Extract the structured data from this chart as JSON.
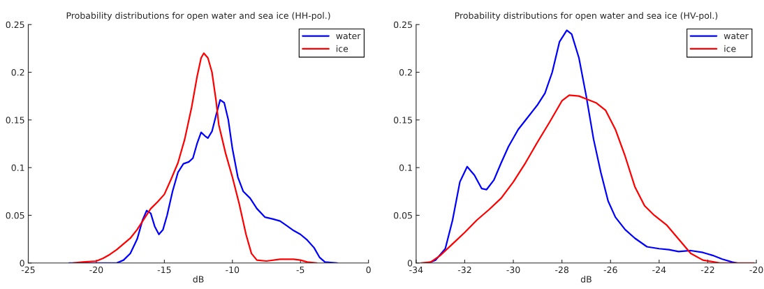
{
  "chart_data": [
    {
      "type": "line",
      "title": "Probability distributions for open water and sea ice (HH-pol.)",
      "xlabel": "dB",
      "xlim": [
        -25,
        0
      ],
      "xticks": [
        -25,
        -20,
        -15,
        -10,
        -5,
        0
      ],
      "ylim": [
        0,
        0.25
      ],
      "yticks": [
        0,
        0.05,
        0.1,
        0.15,
        0.2,
        0.25
      ],
      "grid": false,
      "legend": "top right",
      "series": [
        {
          "name": "water",
          "color": "#0000ff",
          "x": [
            -22,
            -18.5,
            -18,
            -17.5,
            -17,
            -16.6,
            -16.3,
            -16,
            -15.7,
            -15.4,
            -15.1,
            -14.8,
            -14.4,
            -14,
            -13.6,
            -13.2,
            -12.9,
            -12.6,
            -12.3,
            -12,
            -11.8,
            -11.5,
            -11.2,
            -10.9,
            -10.6,
            -10.3,
            -10,
            -9.6,
            -9.2,
            -8.7,
            -8.2,
            -7.6,
            -7,
            -6.5,
            -6,
            -5.5,
            -5,
            -4.5,
            -4,
            -3.6,
            -3.2,
            -2.3
          ],
          "values": [
            0,
            0,
            0.003,
            0.01,
            0.025,
            0.045,
            0.055,
            0.052,
            0.038,
            0.03,
            0.035,
            0.05,
            0.075,
            0.095,
            0.104,
            0.106,
            0.11,
            0.125,
            0.137,
            0.133,
            0.131,
            0.138,
            0.155,
            0.171,
            0.168,
            0.15,
            0.12,
            0.09,
            0.075,
            0.068,
            0.057,
            0.048,
            0.046,
            0.044,
            0.039,
            0.034,
            0.03,
            0.024,
            0.016,
            0.006,
            0.001,
            0
          ]
        },
        {
          "name": "ice",
          "color": "#ff0000",
          "x": [
            -21.7,
            -21,
            -20,
            -19.5,
            -19,
            -18.5,
            -18,
            -17.5,
            -17,
            -16.5,
            -16,
            -15.5,
            -15,
            -14.5,
            -14,
            -13.5,
            -13,
            -12.6,
            -12.3,
            -12.1,
            -11.8,
            -11.5,
            -11.2,
            -11,
            -10.5,
            -10,
            -9.5,
            -9,
            -8.6,
            -8.2,
            -7.5,
            -6.5,
            -5.5,
            -5,
            -4.5,
            -3.8
          ],
          "values": [
            0,
            0.001,
            0.002,
            0.005,
            0.009,
            0.014,
            0.02,
            0.026,
            0.035,
            0.046,
            0.057,
            0.064,
            0.072,
            0.088,
            0.105,
            0.13,
            0.163,
            0.195,
            0.215,
            0.22,
            0.215,
            0.2,
            0.17,
            0.145,
            0.115,
            0.09,
            0.062,
            0.03,
            0.01,
            0.003,
            0.002,
            0.004,
            0.004,
            0.003,
            0.001,
            0
          ]
        }
      ]
    },
    {
      "type": "line",
      "title": "Probability distributions for open water and sea ice (HV-pol.)",
      "xlabel": "dB",
      "xlim": [
        -34,
        -20
      ],
      "xticks": [
        -34,
        -32,
        -30,
        -28,
        -26,
        -24,
        -22,
        -20
      ],
      "ylim": [
        0,
        0.25
      ],
      "yticks": [
        0,
        0.05,
        0.1,
        0.15,
        0.2,
        0.25
      ],
      "grid": false,
      "legend": "top right",
      "series": [
        {
          "name": "water",
          "color": "#0000ff",
          "x": [
            -33.5,
            -33.2,
            -32.8,
            -32.5,
            -32.2,
            -31.9,
            -31.6,
            -31.3,
            -31.1,
            -30.8,
            -30.5,
            -30.2,
            -29.8,
            -29.4,
            -29,
            -28.7,
            -28.4,
            -28.1,
            -27.8,
            -27.6,
            -27.3,
            -27,
            -26.7,
            -26.4,
            -26.1,
            -25.8,
            -25.4,
            -25,
            -24.5,
            -24,
            -23.6,
            -23.2,
            -22.7,
            -22.2,
            -21.8,
            -21.4,
            -21,
            -20.8
          ],
          "values": [
            0,
            0.003,
            0.015,
            0.045,
            0.085,
            0.101,
            0.092,
            0.078,
            0.077,
            0.087,
            0.105,
            0.122,
            0.14,
            0.153,
            0.166,
            0.178,
            0.2,
            0.232,
            0.244,
            0.24,
            0.215,
            0.175,
            0.13,
            0.095,
            0.065,
            0.048,
            0.035,
            0.026,
            0.017,
            0.015,
            0.014,
            0.012,
            0.013,
            0.011,
            0.008,
            0.004,
            0.001,
            0
          ]
        },
        {
          "name": "ice",
          "color": "#ff0000",
          "x": [
            -33.8,
            -33.4,
            -33,
            -32.5,
            -32,
            -31.5,
            -31,
            -30.5,
            -30,
            -29.5,
            -29,
            -28.5,
            -28,
            -27.7,
            -27.3,
            -27,
            -26.6,
            -26.2,
            -25.8,
            -25.4,
            -25,
            -24.6,
            -24.2,
            -23.7,
            -23.2,
            -22.7,
            -22.2,
            -21.5,
            -20.1
          ],
          "values": [
            0,
            0.001,
            0.008,
            0.02,
            0.032,
            0.045,
            0.056,
            0.068,
            0.085,
            0.105,
            0.127,
            0.148,
            0.17,
            0.176,
            0.175,
            0.172,
            0.168,
            0.16,
            0.14,
            0.112,
            0.08,
            0.06,
            0.05,
            0.04,
            0.025,
            0.01,
            0.003,
            0,
            0
          ]
        }
      ]
    }
  ]
}
